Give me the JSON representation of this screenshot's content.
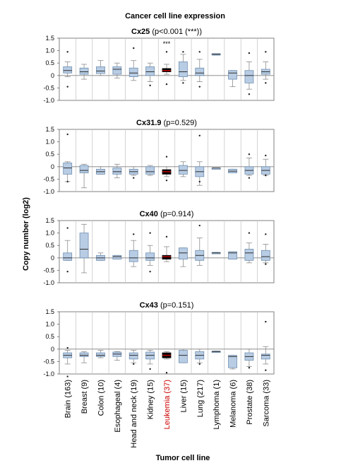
{
  "figure": {
    "title": "Cancer cell line expression",
    "ylabel": "Copy number (log2)",
    "xlabel": "Tumor cell line",
    "highlight_color": "#cc0000",
    "box_color": "#b8cce4",
    "highlight_box_color": "#000000"
  },
  "categories": [
    "Brain (163)",
    "Breast (9)",
    "Colon (10)",
    "Esophageal (4)",
    "Head and neck (19)",
    "Kidney (15)",
    "Leukemia (37)",
    "Liver (15)",
    "Lung (217)",
    "Lymphoma (1)",
    "Melanoma (6)",
    "Prostate (38)",
    "Sarcoma (33)"
  ],
  "highlight_category": "Leukemia (37)",
  "chart_data": [
    {
      "type": "boxplot",
      "gene": "Cx25",
      "pvalue": "(p<0.001 (***))",
      "annotation": "***",
      "annotation_category": "Leukemia (37)",
      "ylim": [
        -1.0,
        1.5
      ],
      "yticks": [
        1.5,
        1.0,
        0.5,
        0,
        -0.5,
        -1.0
      ],
      "ytick_labels": [
        "1.5",
        "1.0",
        "0.5",
        "0",
        "-0.5",
        "-1.0"
      ],
      "boxes": [
        {
          "q1": 0.1,
          "median": 0.2,
          "q3": 0.35,
          "whislo": -0.05,
          "whishi": 0.55,
          "outliers": [
            0.95,
            -0.45
          ]
        },
        {
          "q1": 0.05,
          "median": 0.15,
          "q3": 0.3,
          "whislo": -0.15,
          "whishi": 0.45,
          "outliers": []
        },
        {
          "q1": 0.08,
          "median": 0.18,
          "q3": 0.35,
          "whislo": 0.0,
          "whishi": 0.6,
          "outliers": []
        },
        {
          "q1": 0.05,
          "median": 0.25,
          "q3": 0.35,
          "whislo": -0.1,
          "whishi": 0.5,
          "outliers": []
        },
        {
          "q1": -0.05,
          "median": 0.1,
          "q3": 0.3,
          "whislo": -0.2,
          "whishi": 0.6,
          "outliers": [
            1.1
          ]
        },
        {
          "q1": 0.0,
          "median": 0.15,
          "q3": 0.35,
          "whislo": -0.25,
          "whishi": 0.5,
          "outliers": [
            -0.4
          ]
        },
        {
          "q1": 0.15,
          "median": 0.2,
          "q3": 0.28,
          "whislo": 0.05,
          "whishi": 0.45,
          "outliers": [
            0.95,
            -0.35
          ]
        },
        {
          "q1": -0.05,
          "median": 0.15,
          "q3": 0.55,
          "whislo": -0.2,
          "whishi": 0.85,
          "outliers": [
            0.95,
            -0.3
          ]
        },
        {
          "q1": 0.0,
          "median": 0.1,
          "q3": 0.3,
          "whislo": -0.25,
          "whishi": 0.65,
          "outliers": [
            0.95,
            -0.45
          ]
        },
        {
          "q1": 0.82,
          "median": 0.85,
          "q3": 0.88,
          "whislo": 0.82,
          "whishi": 0.88,
          "outliers": []
        },
        {
          "q1": -0.15,
          "median": 0.1,
          "q3": 0.2,
          "whislo": -0.45,
          "whishi": 0.2,
          "outliers": []
        },
        {
          "q1": -0.3,
          "median": 0.0,
          "q3": 0.2,
          "whislo": -0.55,
          "whishi": 0.55,
          "outliers": [
            0.9,
            -0.75
          ]
        },
        {
          "q1": 0.05,
          "median": 0.15,
          "q3": 0.25,
          "whislo": -0.15,
          "whishi": 0.55,
          "outliers": [
            0.95,
            -0.3
          ]
        }
      ]
    },
    {
      "type": "boxplot",
      "gene": "Cx31.9",
      "pvalue": "(p=0.529)",
      "annotation": "",
      "ylim": [
        -1.0,
        1.5
      ],
      "yticks": [
        1.5,
        1.0,
        0.5,
        0,
        -0.5,
        -1.0
      ],
      "ytick_labels": [
        "1.5",
        "1.0",
        "0.5",
        "0",
        "-0.5",
        "-1.0"
      ],
      "boxes": [
        {
          "q1": -0.3,
          "median": -0.05,
          "q3": 0.15,
          "whislo": -0.6,
          "whishi": 0.2,
          "outliers": [
            1.3,
            -0.6
          ]
        },
        {
          "q1": -0.25,
          "median": -0.15,
          "q3": 0.05,
          "whislo": -0.85,
          "whishi": 0.1,
          "outliers": []
        },
        {
          "q1": -0.3,
          "median": -0.2,
          "q3": -0.1,
          "whislo": -0.3,
          "whishi": 0.0,
          "outliers": []
        },
        {
          "q1": -0.3,
          "median": -0.2,
          "q3": -0.05,
          "whislo": -0.45,
          "whishi": 0.1,
          "outliers": []
        },
        {
          "q1": -0.3,
          "median": -0.2,
          "q3": -0.1,
          "whislo": -0.35,
          "whishi": 0.0,
          "outliers": [
            -0.45
          ]
        },
        {
          "q1": -0.3,
          "median": -0.2,
          "q3": 0.0,
          "whislo": -0.35,
          "whishi": 0.05,
          "outliers": []
        },
        {
          "q1": -0.3,
          "median": -0.2,
          "q3": -0.12,
          "whislo": -0.4,
          "whishi": 0.0,
          "outliers": [
            0.4,
            -0.55
          ]
        },
        {
          "q1": -0.3,
          "median": -0.15,
          "q3": 0.05,
          "whislo": -0.4,
          "whishi": 0.2,
          "outliers": []
        },
        {
          "q1": -0.4,
          "median": -0.2,
          "q3": 0.0,
          "whislo": -0.75,
          "whishi": 0.2,
          "outliers": [
            1.25,
            -0.6
          ]
        },
        {
          "q1": -0.05,
          "median": -0.05,
          "q3": -0.05,
          "whislo": -0.05,
          "whishi": -0.05,
          "outliers": []
        },
        {
          "q1": -0.25,
          "median": -0.18,
          "q3": -0.1,
          "whislo": -0.25,
          "whishi": -0.1,
          "outliers": []
        },
        {
          "q1": -0.3,
          "median": -0.15,
          "q3": 0.0,
          "whislo": -0.35,
          "whishi": 0.35,
          "outliers": [
            0.5,
            -0.45
          ]
        },
        {
          "q1": -0.3,
          "median": -0.15,
          "q3": 0.0,
          "whislo": -0.35,
          "whishi": 0.3,
          "outliers": [
            0.45,
            -0.35
          ]
        }
      ]
    },
    {
      "type": "boxplot",
      "gene": "Cx40",
      "pvalue": "(p=0.914)",
      "annotation": "",
      "ylim": [
        -1.0,
        1.5
      ],
      "yticks": [
        1.5,
        1.0,
        0.5,
        0,
        -0.5,
        -1.0
      ],
      "ytick_labels": [
        "1.5",
        "1.0",
        "0.5",
        "0",
        "-0.5",
        "-1.0"
      ],
      "boxes": [
        {
          "q1": -0.1,
          "median": 0.0,
          "q3": 0.2,
          "whislo": -0.1,
          "whishi": 0.7,
          "outliers": [
            1.2,
            -0.55
          ]
        },
        {
          "q1": 0.0,
          "median": 0.35,
          "q3": 1.0,
          "whislo": -0.6,
          "whishi": 1.35,
          "outliers": []
        },
        {
          "q1": -0.1,
          "median": 0.0,
          "q3": 0.1,
          "whislo": -0.1,
          "whishi": 0.2,
          "outliers": []
        },
        {
          "q1": -0.05,
          "median": 0.05,
          "q3": 0.1,
          "whislo": -0.05,
          "whishi": 0.1,
          "outliers": []
        },
        {
          "q1": -0.15,
          "median": 0.0,
          "q3": 0.3,
          "whislo": -0.35,
          "whishi": 0.7,
          "outliers": [
            0.95
          ]
        },
        {
          "q1": -0.1,
          "median": 0.0,
          "q3": 0.2,
          "whislo": -0.3,
          "whishi": 0.5,
          "outliers": [
            1.0,
            -0.55
          ]
        },
        {
          "q1": -0.05,
          "median": 0.05,
          "q3": 0.1,
          "whislo": -0.15,
          "whishi": 0.45,
          "outliers": [
            0.85
          ]
        },
        {
          "q1": -0.05,
          "median": 0.2,
          "q3": 0.4,
          "whislo": -0.35,
          "whishi": 0.4,
          "outliers": []
        },
        {
          "q1": -0.1,
          "median": 0.1,
          "q3": 0.3,
          "whislo": -0.3,
          "whishi": 0.8,
          "outliers": [
            1.3
          ]
        },
        {
          "q1": 0.18,
          "median": 0.2,
          "q3": 0.22,
          "whislo": 0.18,
          "whishi": 0.22,
          "outliers": []
        },
        {
          "q1": -0.05,
          "median": 0.2,
          "q3": 0.25,
          "whislo": -0.05,
          "whishi": 0.25,
          "outliers": []
        },
        {
          "q1": -0.1,
          "median": 0.2,
          "q3": 0.35,
          "whislo": -0.2,
          "whishi": 0.6,
          "outliers": [
            1.0
          ]
        },
        {
          "q1": -0.1,
          "median": 0.05,
          "q3": 0.3,
          "whislo": -0.2,
          "whishi": 0.55,
          "outliers": [
            0.95,
            -0.25
          ]
        }
      ]
    },
    {
      "type": "boxplot",
      "gene": "Cx43",
      "pvalue": "(p=0.151)",
      "annotation": "",
      "ylim": [
        -1.0,
        1.5
      ],
      "yticks": [
        1.5,
        1.0,
        0.5,
        0,
        -0.5,
        -1.0
      ],
      "ytick_labels": [
        "1.5",
        "1.0",
        "0.5",
        "0",
        "-0.5",
        "-1.0"
      ],
      "boxes": [
        {
          "q1": -0.35,
          "median": -0.25,
          "q3": -0.15,
          "whislo": -0.6,
          "whishi": -0.05,
          "outliers": [
            0.05,
            -1.1
          ]
        },
        {
          "q1": -0.3,
          "median": -0.25,
          "q3": -0.15,
          "whislo": -0.55,
          "whishi": -0.1,
          "outliers": []
        },
        {
          "q1": -0.3,
          "median": -0.25,
          "q3": -0.15,
          "whislo": -0.35,
          "whishi": -0.05,
          "outliers": []
        },
        {
          "q1": -0.3,
          "median": -0.2,
          "q3": -0.12,
          "whislo": -0.45,
          "whishi": -0.1,
          "outliers": []
        },
        {
          "q1": -0.4,
          "median": -0.25,
          "q3": -0.15,
          "whislo": -0.55,
          "whishi": -0.05,
          "outliers": [
            -0.6
          ]
        },
        {
          "q1": -0.4,
          "median": -0.25,
          "q3": -0.12,
          "whislo": -0.6,
          "whishi": -0.05,
          "outliers": [
            -0.8
          ]
        },
        {
          "q1": -0.35,
          "median": -0.25,
          "q3": -0.15,
          "whislo": -0.4,
          "whishi": -0.1,
          "outliers": [
            -0.95
          ]
        },
        {
          "q1": -0.55,
          "median": -0.25,
          "q3": -0.05,
          "whislo": -0.55,
          "whishi": 0.0,
          "outliers": []
        },
        {
          "q1": -0.4,
          "median": -0.25,
          "q3": -0.1,
          "whislo": -0.55,
          "whishi": 0.0,
          "outliers": [
            -0.6
          ]
        },
        {
          "q1": -0.12,
          "median": -0.1,
          "q3": -0.08,
          "whislo": -0.12,
          "whishi": -0.08,
          "outliers": []
        },
        {
          "q1": -0.75,
          "median": -0.3,
          "q3": -0.25,
          "whislo": -0.8,
          "whishi": -0.25,
          "outliers": []
        },
        {
          "q1": -0.45,
          "median": -0.3,
          "q3": -0.15,
          "whislo": -0.7,
          "whishi": 0.0,
          "outliers": [
            -0.75
          ]
        },
        {
          "q1": -0.4,
          "median": -0.25,
          "q3": -0.2,
          "whislo": -0.6,
          "whishi": 0.1,
          "outliers": [
            1.1,
            -0.85
          ]
        }
      ]
    }
  ]
}
